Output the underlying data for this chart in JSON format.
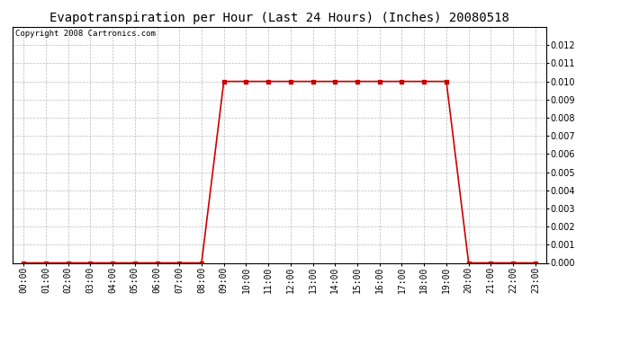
{
  "title": "Evapotranspiration per Hour (Last 24 Hours) (Inches) 20080518",
  "copyright_text": "Copyright 2008 Cartronics.com",
  "hours": [
    "00:00",
    "01:00",
    "02:00",
    "03:00",
    "04:00",
    "05:00",
    "06:00",
    "07:00",
    "08:00",
    "09:00",
    "10:00",
    "11:00",
    "12:00",
    "13:00",
    "14:00",
    "15:00",
    "16:00",
    "17:00",
    "18:00",
    "19:00",
    "20:00",
    "21:00",
    "22:00",
    "23:00"
  ],
  "values": [
    0.0,
    0.0,
    0.0,
    0.0,
    0.0,
    0.0,
    0.0,
    0.0,
    0.0,
    0.01,
    0.01,
    0.01,
    0.01,
    0.01,
    0.01,
    0.01,
    0.01,
    0.01,
    0.01,
    0.01,
    0.0,
    0.0,
    0.0,
    0.0
  ],
  "line_color": "#cc0000",
  "marker": "s",
  "marker_size": 3,
  "ylim": [
    0.0,
    0.013
  ],
  "yticks": [
    0.0,
    0.001,
    0.002,
    0.003,
    0.004,
    0.005,
    0.006,
    0.007,
    0.008,
    0.009,
    0.01,
    0.011,
    0.012
  ],
  "grid_color": "#bbbbbb",
  "background_color": "#ffffff",
  "title_fontsize": 10,
  "copyright_fontsize": 6.5,
  "tick_fontsize": 7
}
